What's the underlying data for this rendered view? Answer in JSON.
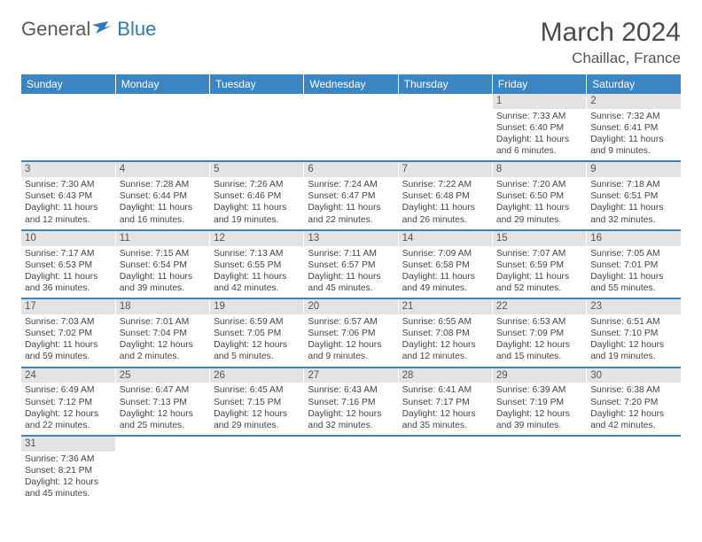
{
  "logo": {
    "text1": "General",
    "text2": "Blue"
  },
  "title": "March 2024",
  "location": "Chaillac, France",
  "weekdays": [
    "Sunday",
    "Monday",
    "Tuesday",
    "Wednesday",
    "Thursday",
    "Friday",
    "Saturday"
  ],
  "colors": {
    "header_bg": "#3b85c3",
    "header_text": "#ffffff",
    "daynum_bg": "#e3e3e3",
    "row_border": "#3b85c3",
    "text": "#444444"
  },
  "weeks": [
    [
      null,
      null,
      null,
      null,
      null,
      {
        "n": "1",
        "sr": "7:33 AM",
        "ss": "6:40 PM",
        "dl": "11 hours and 6 minutes."
      },
      {
        "n": "2",
        "sr": "7:32 AM",
        "ss": "6:41 PM",
        "dl": "11 hours and 9 minutes."
      }
    ],
    [
      {
        "n": "3",
        "sr": "7:30 AM",
        "ss": "6:43 PM",
        "dl": "11 hours and 12 minutes."
      },
      {
        "n": "4",
        "sr": "7:28 AM",
        "ss": "6:44 PM",
        "dl": "11 hours and 16 minutes."
      },
      {
        "n": "5",
        "sr": "7:26 AM",
        "ss": "6:46 PM",
        "dl": "11 hours and 19 minutes."
      },
      {
        "n": "6",
        "sr": "7:24 AM",
        "ss": "6:47 PM",
        "dl": "11 hours and 22 minutes."
      },
      {
        "n": "7",
        "sr": "7:22 AM",
        "ss": "6:48 PM",
        "dl": "11 hours and 26 minutes."
      },
      {
        "n": "8",
        "sr": "7:20 AM",
        "ss": "6:50 PM",
        "dl": "11 hours and 29 minutes."
      },
      {
        "n": "9",
        "sr": "7:18 AM",
        "ss": "6:51 PM",
        "dl": "11 hours and 32 minutes."
      }
    ],
    [
      {
        "n": "10",
        "sr": "7:17 AM",
        "ss": "6:53 PM",
        "dl": "11 hours and 36 minutes."
      },
      {
        "n": "11",
        "sr": "7:15 AM",
        "ss": "6:54 PM",
        "dl": "11 hours and 39 minutes."
      },
      {
        "n": "12",
        "sr": "7:13 AM",
        "ss": "6:55 PM",
        "dl": "11 hours and 42 minutes."
      },
      {
        "n": "13",
        "sr": "7:11 AM",
        "ss": "6:57 PM",
        "dl": "11 hours and 45 minutes."
      },
      {
        "n": "14",
        "sr": "7:09 AM",
        "ss": "6:58 PM",
        "dl": "11 hours and 49 minutes."
      },
      {
        "n": "15",
        "sr": "7:07 AM",
        "ss": "6:59 PM",
        "dl": "11 hours and 52 minutes."
      },
      {
        "n": "16",
        "sr": "7:05 AM",
        "ss": "7:01 PM",
        "dl": "11 hours and 55 minutes."
      }
    ],
    [
      {
        "n": "17",
        "sr": "7:03 AM",
        "ss": "7:02 PM",
        "dl": "11 hours and 59 minutes."
      },
      {
        "n": "18",
        "sr": "7:01 AM",
        "ss": "7:04 PM",
        "dl": "12 hours and 2 minutes."
      },
      {
        "n": "19",
        "sr": "6:59 AM",
        "ss": "7:05 PM",
        "dl": "12 hours and 5 minutes."
      },
      {
        "n": "20",
        "sr": "6:57 AM",
        "ss": "7:06 PM",
        "dl": "12 hours and 9 minutes."
      },
      {
        "n": "21",
        "sr": "6:55 AM",
        "ss": "7:08 PM",
        "dl": "12 hours and 12 minutes."
      },
      {
        "n": "22",
        "sr": "6:53 AM",
        "ss": "7:09 PM",
        "dl": "12 hours and 15 minutes."
      },
      {
        "n": "23",
        "sr": "6:51 AM",
        "ss": "7:10 PM",
        "dl": "12 hours and 19 minutes."
      }
    ],
    [
      {
        "n": "24",
        "sr": "6:49 AM",
        "ss": "7:12 PM",
        "dl": "12 hours and 22 minutes."
      },
      {
        "n": "25",
        "sr": "6:47 AM",
        "ss": "7:13 PM",
        "dl": "12 hours and 25 minutes."
      },
      {
        "n": "26",
        "sr": "6:45 AM",
        "ss": "7:15 PM",
        "dl": "12 hours and 29 minutes."
      },
      {
        "n": "27",
        "sr": "6:43 AM",
        "ss": "7:16 PM",
        "dl": "12 hours and 32 minutes."
      },
      {
        "n": "28",
        "sr": "6:41 AM",
        "ss": "7:17 PM",
        "dl": "12 hours and 35 minutes."
      },
      {
        "n": "29",
        "sr": "6:39 AM",
        "ss": "7:19 PM",
        "dl": "12 hours and 39 minutes."
      },
      {
        "n": "30",
        "sr": "6:38 AM",
        "ss": "7:20 PM",
        "dl": "12 hours and 42 minutes."
      }
    ],
    [
      {
        "n": "31",
        "sr": "7:36 AM",
        "ss": "8:21 PM",
        "dl": "12 hours and 45 minutes."
      },
      null,
      null,
      null,
      null,
      null,
      null
    ]
  ],
  "labels": {
    "sunrise": "Sunrise:",
    "sunset": "Sunset:",
    "daylight": "Daylight:"
  }
}
